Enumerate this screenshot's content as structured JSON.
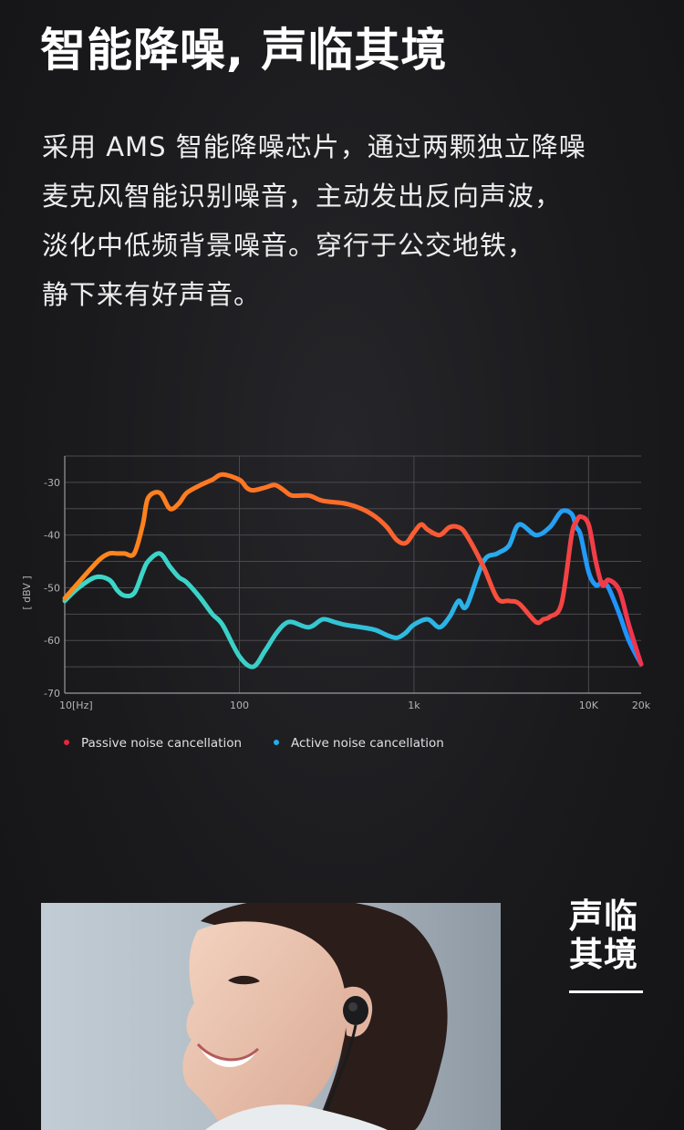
{
  "headline": "智能降噪, 声临其境",
  "description": [
    "采用 AMS 智能降噪芯片，通过两颗独立降噪",
    "麦克风智能识别噪音，主动发出反向声波，",
    "淡化中低频背景噪音。穿行于公交地铁，",
    "静下来有好声音。"
  ],
  "chart_data": {
    "type": "line",
    "ylabel": "[ dBV ]",
    "xlabel_unit": "[Hz]",
    "x_scale": "log",
    "xlim": [
      10,
      20000
    ],
    "ylim": [
      -70,
      -25
    ],
    "y_ticks": [
      -30,
      -40,
      -50,
      -60,
      -70
    ],
    "x_ticks": [
      {
        "value": 10,
        "label": "10"
      },
      {
        "value": 100,
        "label": "100"
      },
      {
        "value": 1000,
        "label": "1k"
      },
      {
        "value": 10000,
        "label": "10K"
      },
      {
        "value": 20000,
        "label": "20k"
      }
    ],
    "grid": true,
    "legend_position": "bottom-left",
    "series": [
      {
        "name": "Passive noise cancellation",
        "legend_color": "#e8253f",
        "gradient_colors": [
          "#ff8a1a",
          "#ff6a2a",
          "#f0344e"
        ],
        "x": [
          10,
          12,
          14,
          16,
          18,
          20,
          22,
          25,
          28,
          30,
          35,
          40,
          45,
          50,
          60,
          70,
          80,
          100,
          110,
          120,
          140,
          160,
          180,
          200,
          250,
          300,
          400,
          500,
          600,
          700,
          800,
          900,
          1000,
          1100,
          1200,
          1400,
          1600,
          1800,
          2000,
          2500,
          3000,
          3500,
          4000,
          5000,
          5500,
          6000,
          7000,
          8000,
          8500,
          9000,
          10000,
          11000,
          12000,
          13000,
          15000,
          17000,
          20000
        ],
        "y": [
          -52,
          -49,
          -46.5,
          -44.5,
          -43.5,
          -43.5,
          -43.5,
          -43.5,
          -38,
          -33,
          -32,
          -35,
          -34,
          -32,
          -30.5,
          -29.5,
          -28.5,
          -29.5,
          -31,
          -31.5,
          -31,
          -30.5,
          -31.5,
          -32.5,
          -32.5,
          -33.5,
          -34,
          -35,
          -36.5,
          -38.5,
          -41,
          -41.5,
          -39.5,
          -38,
          -39,
          -40,
          -38.5,
          -38.5,
          -40,
          -46,
          -52,
          -52.5,
          -53,
          -56.5,
          -56,
          -55.5,
          -53,
          -40,
          -37.5,
          -36.5,
          -38,
          -45,
          -49.5,
          -48.5,
          -50.5,
          -57,
          -64.5
        ]
      },
      {
        "name": "Active noise cancellation",
        "legend_color": "#1fb0ec",
        "gradient_colors": [
          "#3dd8c8",
          "#3ad0c8",
          "#2ab4e8",
          "#1f8fff"
        ],
        "x": [
          10,
          12,
          15,
          18,
          20,
          22,
          25,
          28,
          30,
          35,
          40,
          45,
          50,
          60,
          70,
          80,
          100,
          120,
          140,
          160,
          180,
          200,
          250,
          300,
          350,
          400,
          500,
          600,
          700,
          800,
          900,
          1000,
          1200,
          1400,
          1600,
          1800,
          2000,
          2500,
          3000,
          3500,
          4000,
          5000,
          6000,
          7000,
          8000,
          8500,
          9000,
          10000,
          11000,
          12000,
          13000,
          15000,
          17000,
          20000
        ],
        "y": [
          -52.5,
          -50,
          -48,
          -48.5,
          -50.5,
          -51.5,
          -51,
          -47,
          -45,
          -43.5,
          -46,
          -48,
          -49,
          -52,
          -55,
          -57,
          -63,
          -65,
          -62,
          -59,
          -57,
          -56.5,
          -57.5,
          -56,
          -56.5,
          -57,
          -57.5,
          -58,
          -59,
          -59.5,
          -58.5,
          -57,
          -56,
          -57.5,
          -55.5,
          -52.5,
          -53.5,
          -45,
          -43.5,
          -42,
          -38,
          -40,
          -38.5,
          -35.5,
          -36,
          -38.5,
          -40,
          -47,
          -49.5,
          -49,
          -50,
          -55,
          -60,
          -64.5
        ]
      }
    ]
  },
  "side_title": [
    "声临",
    "其境"
  ]
}
